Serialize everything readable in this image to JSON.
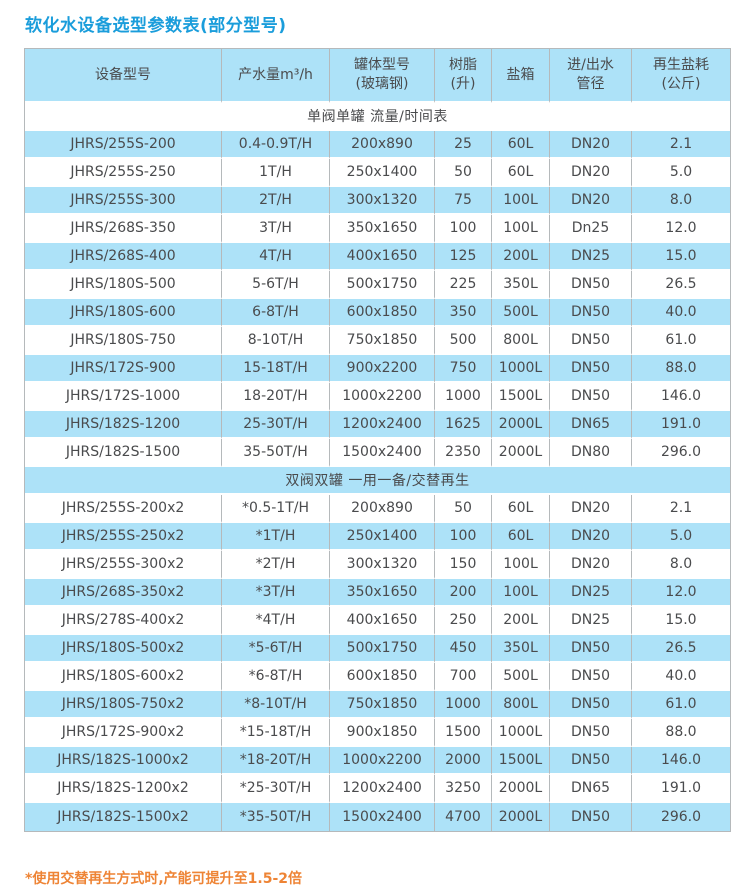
{
  "page": {
    "title": "软化水设备选型参数表(部分型号)",
    "footnote": "*使用交替再生方式时,产能可提升至1.5-2倍"
  },
  "colors": {
    "title_blue": "#1a9ddb",
    "note_orange": "#ee8435",
    "row_blue": "#ade2f8",
    "row_white": "#ffffff",
    "text": "#4a4b4d",
    "grid_line": "#b5b9bb"
  },
  "table": {
    "headers": [
      "设备型号",
      "产水量m³/h",
      "罐体型号\n(玻璃钢)",
      "树脂\n(升)",
      "盐箱",
      "进/出水\n管径",
      "再生盐耗\n(公斤)"
    ],
    "sections": [
      {
        "label": "单阀单罐 流量/时间表",
        "rows": [
          [
            "JHRS/255S-200",
            "0.4-0.9T/H",
            "200x890",
            "25",
            "60L",
            "DN20",
            "2.1"
          ],
          [
            "JHRS/255S-250",
            "1T/H",
            "250x1400",
            "50",
            "60L",
            "DN20",
            "5.0"
          ],
          [
            "JHRS/255S-300",
            "2T/H",
            "300x1320",
            "75",
            "100L",
            "DN20",
            "8.0"
          ],
          [
            "JHRS/268S-350",
            "3T/H",
            "350x1650",
            "100",
            "100L",
            "Dn25",
            "12.0"
          ],
          [
            "JHRS/268S-400",
            "4T/H",
            "400x1650",
            "125",
            "200L",
            "DN25",
            "15.0"
          ],
          [
            "JHRS/180S-500",
            "5-6T/H",
            "500x1750",
            "225",
            "350L",
            "DN50",
            "26.5"
          ],
          [
            "JHRS/180S-600",
            "6-8T/H",
            "600x1850",
            "350",
            "500L",
            "DN50",
            "40.0"
          ],
          [
            "JHRS/180S-750",
            "8-10T/H",
            "750x1850",
            "500",
            "800L",
            "DN50",
            "61.0"
          ],
          [
            "JHRS/172S-900",
            "15-18T/H",
            "900x2200",
            "750",
            "1000L",
            "DN50",
            "88.0"
          ],
          [
            "JHRS/172S-1000",
            "18-20T/H",
            "1000x2200",
            "1000",
            "1500L",
            "DN50",
            "146.0"
          ],
          [
            "JHRS/182S-1200",
            "25-30T/H",
            "1200x2400",
            "1625",
            "2000L",
            "DN65",
            "191.0"
          ],
          [
            "JHRS/182S-1500",
            "35-50T/H",
            "1500x2400",
            "2350",
            "2000L",
            "DN80",
            "296.0"
          ]
        ]
      },
      {
        "label": "双阀双罐 一用一备/交替再生",
        "rows": [
          [
            "JHRS/255S-200x2",
            "*0.5-1T/H",
            "200x890",
            "50",
            "60L",
            "DN20",
            "2.1"
          ],
          [
            "JHRS/255S-250x2",
            "*1T/H",
            "250x1400",
            "100",
            "60L",
            "DN20",
            "5.0"
          ],
          [
            "JHRS/255S-300x2",
            "*2T/H",
            "300x1320",
            "150",
            "100L",
            "DN20",
            "8.0"
          ],
          [
            "JHRS/268S-350x2",
            "*3T/H",
            "350x1650",
            "200",
            "100L",
            "DN25",
            "12.0"
          ],
          [
            "JHRS/278S-400x2",
            "*4T/H",
            "400x1650",
            "250",
            "200L",
            "DN25",
            "15.0"
          ],
          [
            "JHRS/180S-500x2",
            "*5-6T/H",
            "500x1750",
            "450",
            "350L",
            "DN50",
            "26.5"
          ],
          [
            "JHRS/180S-600x2",
            "*6-8T/H",
            "600x1850",
            "700",
            "500L",
            "DN50",
            "40.0"
          ],
          [
            "JHRS/180S-750x2",
            "*8-10T/H",
            "750x1850",
            "1000",
            "800L",
            "DN50",
            "61.0"
          ],
          [
            "JHRS/172S-900x2",
            "*15-18T/H",
            "900x1850",
            "1500",
            "1000L",
            "DN50",
            "88.0"
          ],
          [
            "JHRS/182S-1000x2",
            "*18-20T/H",
            "1000x2200",
            "2000",
            "1500L",
            "DN50",
            "146.0"
          ],
          [
            "JHRS/182S-1200x2",
            "*25-30T/H",
            "1200x2400",
            "3250",
            "2000L",
            "DN65",
            "191.0"
          ],
          [
            "JHRS/182S-1500x2",
            "*35-50T/H",
            "1500x2400",
            "4700",
            "2000L",
            "DN50",
            "296.0"
          ]
        ]
      }
    ]
  }
}
